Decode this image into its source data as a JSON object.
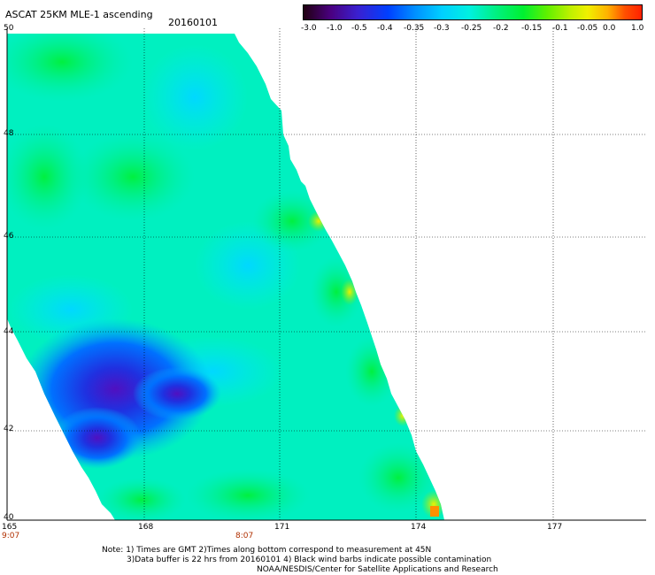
{
  "header": {
    "title": "ASCAT 25KM MLE-1 ascending",
    "date": "20160101"
  },
  "colorbar": {
    "tick_labels": [
      "-3.0",
      "-1.0",
      "-0.5",
      "-0.4",
      "-0.35",
      "-0.3",
      "-0.25",
      "-0.2",
      "-0.15",
      "-0.1",
      "-0.05",
      "0.0",
      "1.0"
    ],
    "colors": [
      "#300020",
      "#5a00a0",
      "#2020e0",
      "#0060ff",
      "#00a8ff",
      "#00e0f0",
      "#00f0b0",
      "#00f040",
      "#40f000",
      "#a0f000",
      "#f0f000",
      "#ffa000",
      "#ff4020"
    ]
  },
  "axes": {
    "x_ticks": [
      "165",
      "168",
      "171",
      "174",
      "177"
    ],
    "y_ticks": [
      "50",
      "48",
      "46",
      "44",
      "42",
      "40"
    ],
    "time_labels": [
      "9:07",
      "8:07"
    ]
  },
  "notes": {
    "line1": "Note: 1) Times are GMT 2)Times along bottom correspond to measurement at 45N",
    "line2": "3)Data buffer is 22 hrs from 20160101 4) Black wind barbs indicate possible contamination",
    "line3": "NOAA/NESDIS/Center for Satellite Applications and Research"
  },
  "map_data": {
    "lon_range": [
      165,
      180
    ],
    "lat_range": [
      40,
      50
    ],
    "swath": "diagonal ascending pass, west of ~171-175E",
    "palette_levels": [
      "strongly negative (purple/blue) near 166-167E 41-43N",
      "cyan/green elsewhere",
      "yellow/orange along eastern swath edge"
    ]
  }
}
